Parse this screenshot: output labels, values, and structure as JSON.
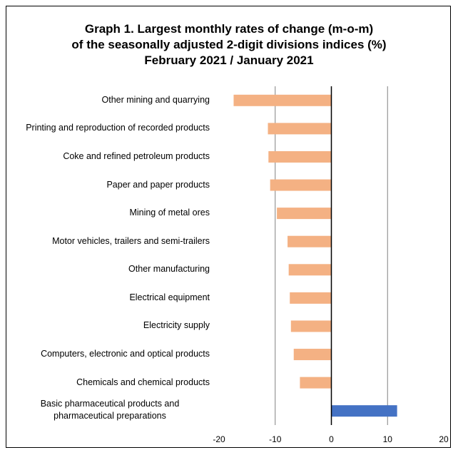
{
  "chart_data": {
    "type": "barh",
    "title": "Graph 1. Largest monthly rates of change (m-o-m)\nof the seasonally adjusted 2-digit divisions indices (%)",
    "subtitle": "February 2021 / January 2021",
    "categories": [
      "Other mining and quarrying",
      "Printing and reproduction of recorded products",
      "Coke and refined petroleum products",
      "Paper and paper products",
      "Mining of metal ores",
      "Motor vehicles, trailers and semi-trailers",
      "Other manufacturing",
      "Electrical equipment",
      "Electricity supply",
      "Computers, electronic and optical products",
      "Chemicals and chemical products",
      "Basic pharmaceutical products and pharmaceutical preparations"
    ],
    "values": [
      -17.4,
      -11.3,
      -11.2,
      -10.9,
      -9.7,
      -7.8,
      -7.6,
      -7.4,
      -7.2,
      -6.7,
      -5.6,
      11.7
    ],
    "colors": [
      "#f4b183",
      "#f4b183",
      "#f4b183",
      "#f4b183",
      "#f4b183",
      "#f4b183",
      "#f4b183",
      "#f4b183",
      "#f4b183",
      "#f4b183",
      "#f4b183",
      "#4472c4"
    ],
    "xlim": [
      -20,
      20
    ],
    "xticks": [
      -20,
      -10,
      0,
      10,
      20
    ],
    "grid": true
  }
}
